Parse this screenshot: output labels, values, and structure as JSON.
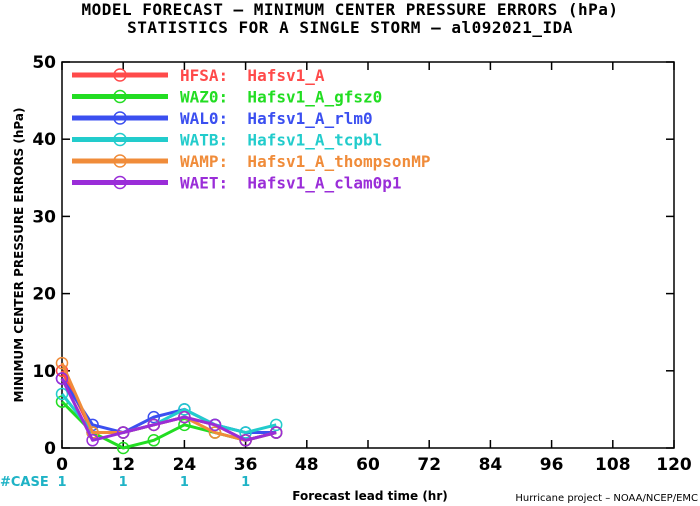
{
  "chart_data": {
    "type": "line",
    "title": "MODEL FORECAST – MINIMUM CENTER PRESSURE ERRORS (hPa)",
    "subtitle": "STATISTICS FOR A SINGLE STORM – al092021_IDA",
    "xlabel": "Forecast lead time (hr)",
    "ylabel": "MINIMUM CENTER PRESSURE ERRORS (hPa)",
    "xlim": [
      0,
      120
    ],
    "ylim": [
      0,
      50
    ],
    "xticks": [
      0,
      12,
      24,
      36,
      48,
      60,
      72,
      84,
      96,
      108,
      120
    ],
    "yticks": [
      0,
      10,
      20,
      30,
      40,
      50
    ],
    "grid": false,
    "legend_position": "top-left",
    "case_label": "#CASE",
    "case_counts": [
      {
        "x": 0,
        "label": "1"
      },
      {
        "x": 12,
        "label": "1"
      },
      {
        "x": 24,
        "label": "1"
      },
      {
        "x": 36,
        "label": "1"
      }
    ],
    "credit": "Hurricane project – NOAA/NCEP/EMC",
    "x": [
      0,
      6,
      12,
      18,
      24,
      30,
      36,
      42
    ],
    "series": [
      {
        "name": "HFSA:  Hafsv1_A",
        "color": "#ff4a4a",
        "values": [
          10,
          2,
          2,
          3,
          4,
          3,
          1,
          2
        ]
      },
      {
        "name": "WAZ0:  Hafsv1_A_gfsz0",
        "color": "#22dd22",
        "values": [
          6,
          2,
          0,
          1,
          3,
          2,
          1,
          2
        ]
      },
      {
        "name": "WAL0:  Hafsv1_A_rlm0",
        "color": "#3b4ff0",
        "values": [
          9,
          3,
          2,
          4,
          5,
          3,
          2,
          2
        ]
      },
      {
        "name": "WATB:  Hafsv1_A_tcpbl",
        "color": "#22cccc",
        "values": [
          7,
          2,
          2,
          3,
          5,
          3,
          2,
          3
        ]
      },
      {
        "name": "WAMP:  Hafsv1_A_thompsonMP",
        "color": "#f08c3a",
        "values": [
          11,
          2,
          2,
          3,
          4,
          2,
          1,
          2
        ]
      },
      {
        "name": "WAET:  Hafsv1_A_clam0p1",
        "color": "#9a2dd8",
        "values": [
          9,
          1,
          2,
          3,
          4,
          3,
          1,
          2
        ]
      }
    ]
  }
}
